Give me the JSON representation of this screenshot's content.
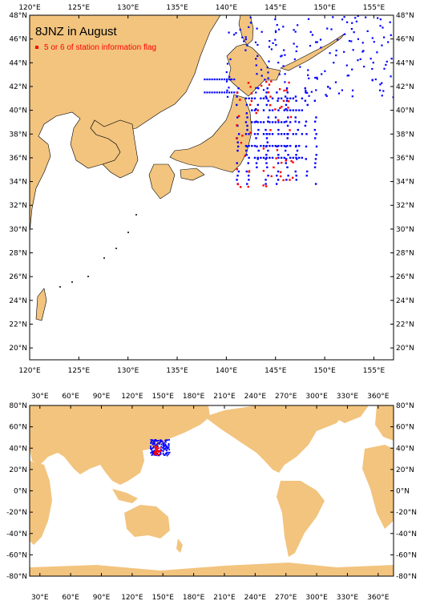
{
  "top_map": {
    "title": "8JNZ in August",
    "legend_label": "5 or 6 of station information flag",
    "x_ticks": [
      "120°E",
      "125°E",
      "130°E",
      "135°E",
      "140°E",
      "145°E",
      "150°E",
      "155°E"
    ],
    "y_ticks": [
      "48°N",
      "46°N",
      "44°N",
      "42°N",
      "40°N",
      "38°N",
      "36°N",
      "34°N",
      "32°N",
      "30°N",
      "28°N",
      "26°N",
      "24°N",
      "22°N",
      "20°N"
    ],
    "lon_range": [
      120,
      157
    ],
    "lat_range": [
      19,
      48
    ]
  },
  "bottom_map": {
    "x_ticks": [
      "30°E",
      "60°E",
      "90°E",
      "120°E",
      "150°E",
      "180°E",
      "210°E",
      "240°E",
      "270°E",
      "300°E",
      "330°E",
      "360°E"
    ],
    "y_ticks": [
      "80°N",
      "60°N",
      "40°N",
      "20°N",
      "0°N",
      "-20°N",
      "-40°N",
      "-60°N",
      "-80°N"
    ],
    "lon_range": [
      20,
      375
    ],
    "lat_range": [
      -80,
      80
    ]
  },
  "colors": {
    "land": "#f2c47e",
    "station_normal": "#0000ff",
    "station_flagged": "#ff0000"
  }
}
